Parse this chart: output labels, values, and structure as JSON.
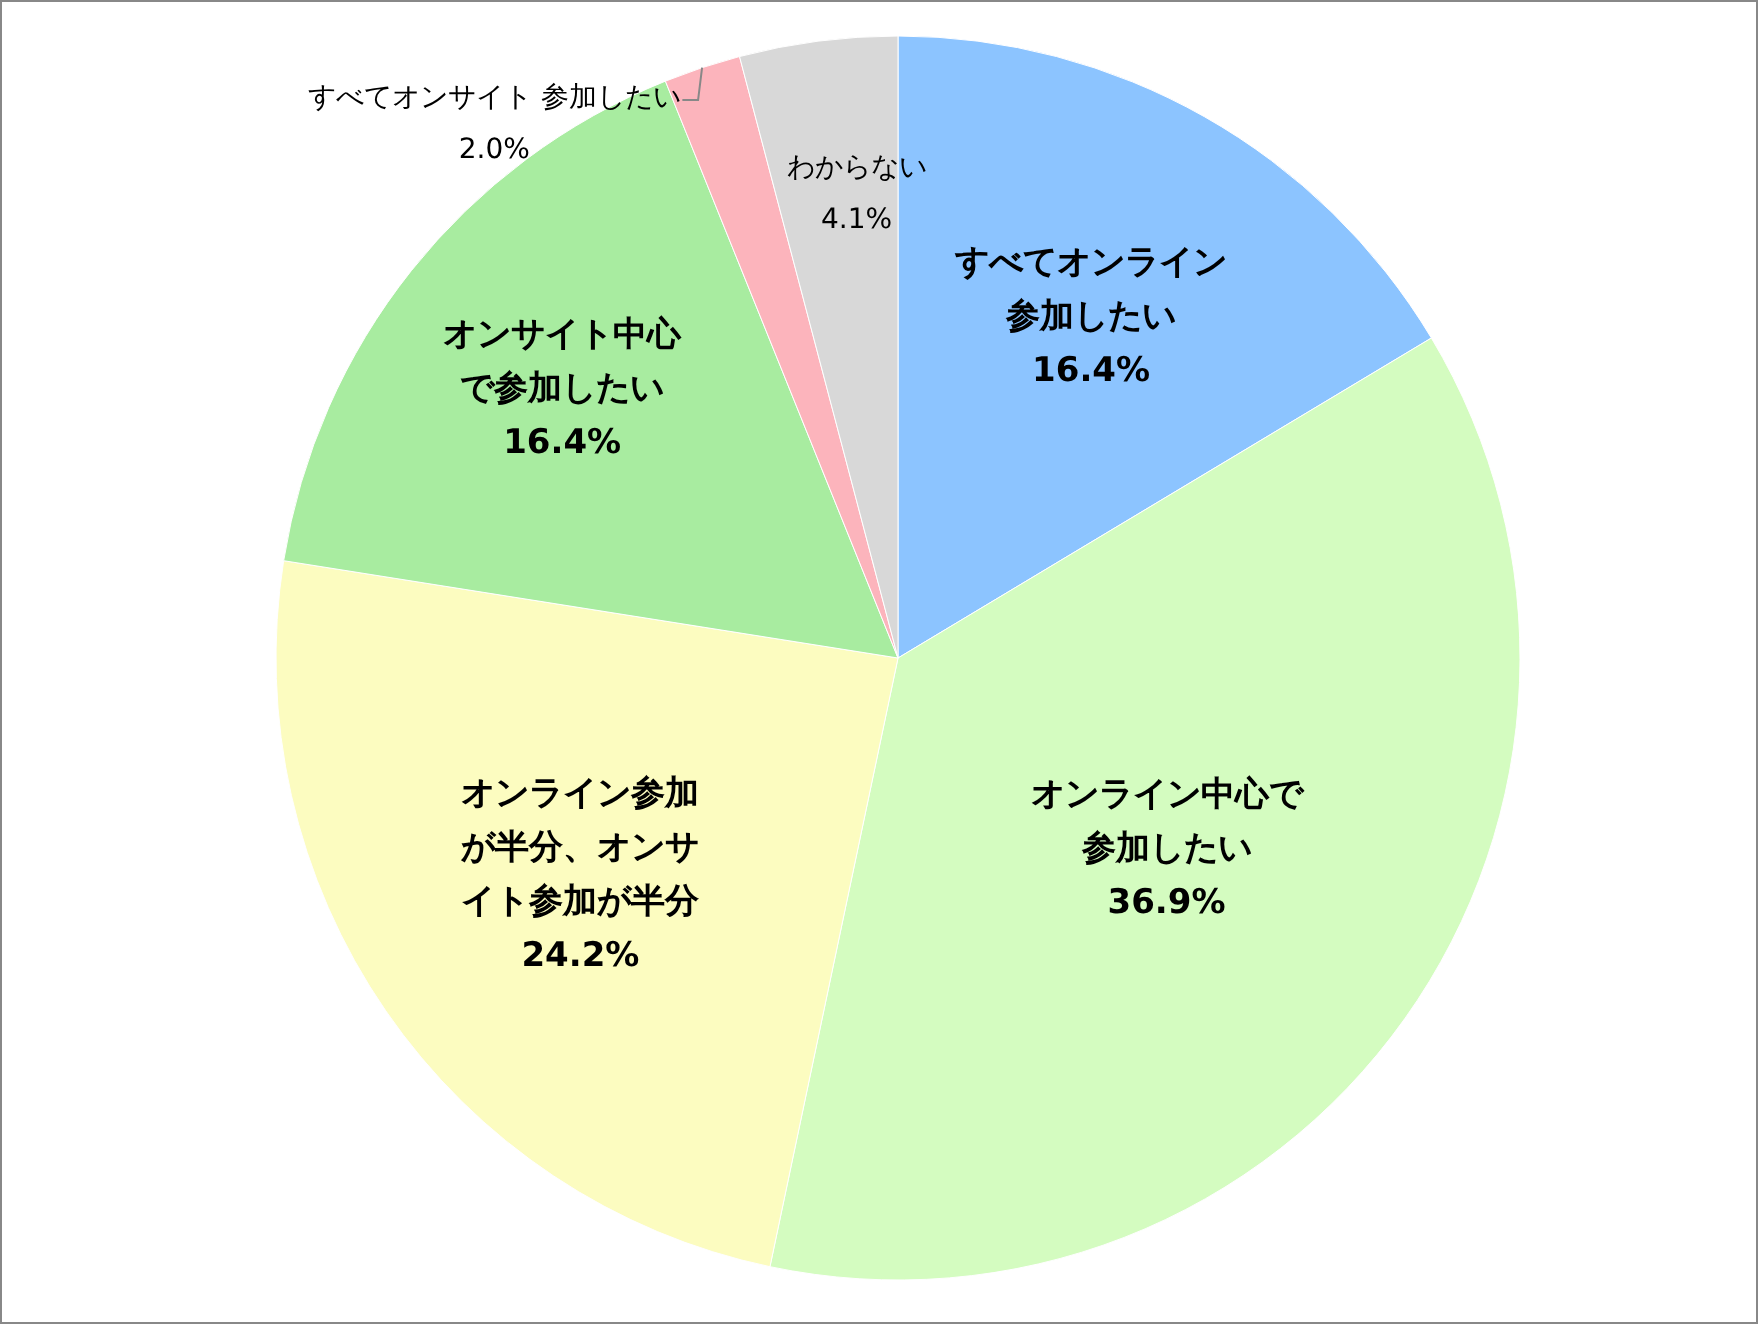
{
  "chart_data": {
    "type": "pie",
    "categories": [
      "すべてオンライン参加したい",
      "オンライン中心で参加したい",
      "オンライン参加が半分、オンサイト参加が半分",
      "オンサイト中心で参加したい",
      "すべてオンサイト 参加したい",
      "わからない"
    ],
    "values": [
      16.4,
      36.9,
      24.2,
      16.4,
      2.0,
      4.1
    ],
    "colors": [
      "#8cc4ff",
      "#d4fcc0",
      "#fcfcc0",
      "#a8eca0",
      "#fcb4bc",
      "#d8d8d8"
    ],
    "value_labels": [
      "16.4%",
      "36.9%",
      "24.2%",
      "16.4%",
      "2.0%",
      "4.1%"
    ]
  }
}
